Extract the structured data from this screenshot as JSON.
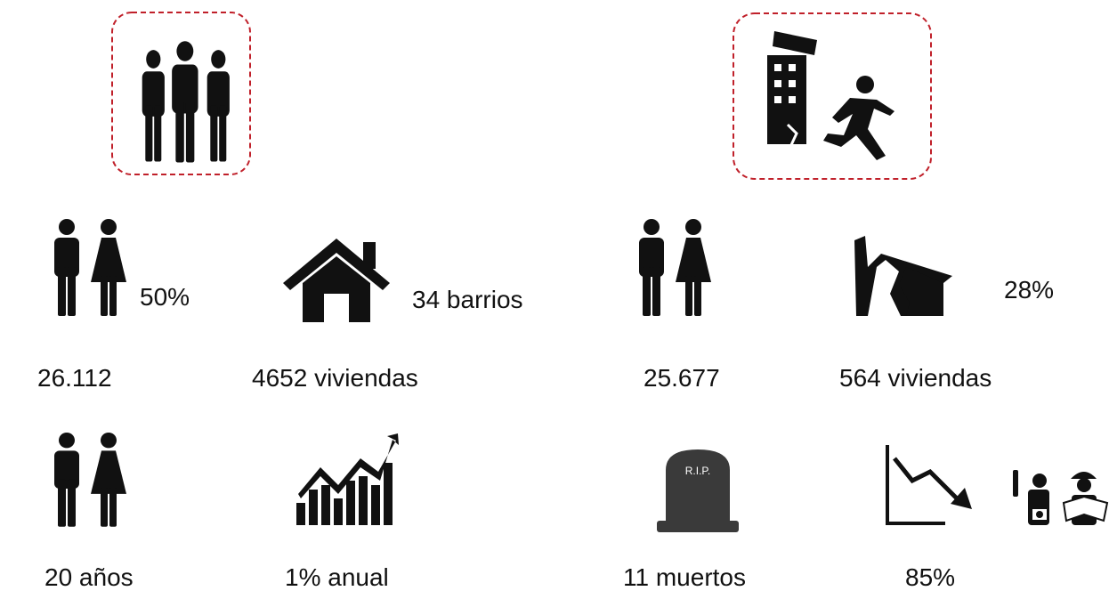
{
  "left": [
    "50%",
    "34 barrios",
    "26.112",
    "4652 viviendas",
    "20 años",
    "1% anual"
  ],
  "right": [
    "25.677",
    "564 viviendas",
    "28%",
    "11 muertos",
    "85%"
  ],
  "tombstone": "R.I.P."
}
